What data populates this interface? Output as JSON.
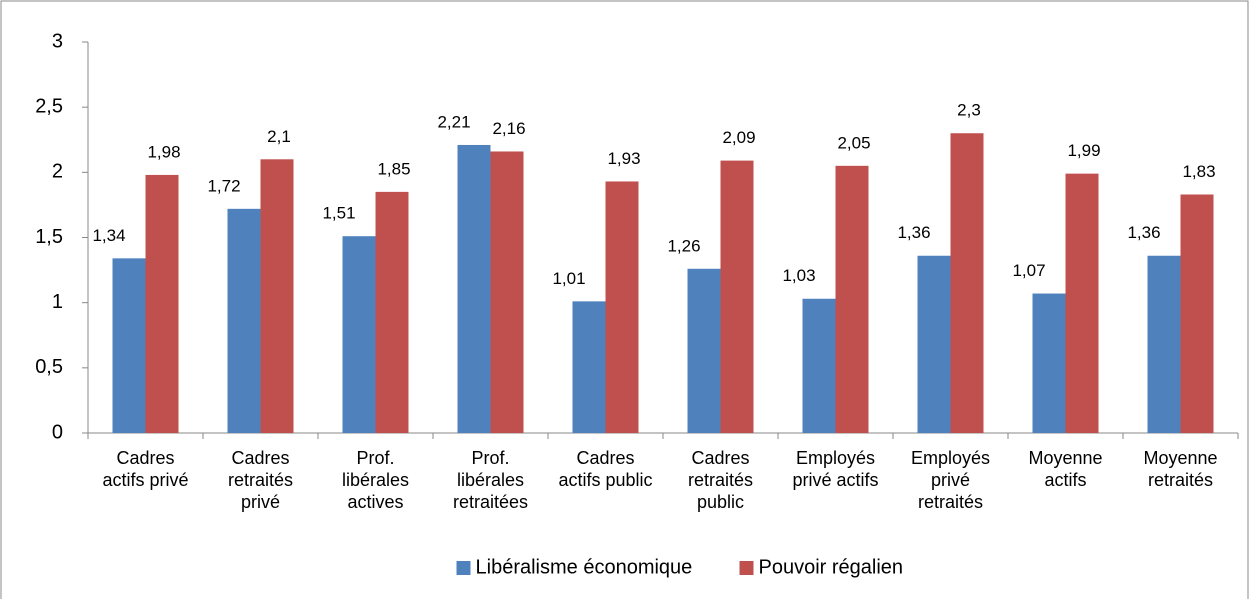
{
  "chart_data": {
    "type": "bar",
    "categories": [
      "Cadres actifs privé",
      "Cadres retraités privé",
      "Prof. libérales actives",
      "Prof. libérales retraitées",
      "Cadres actifs public",
      "Cadres retraités public",
      "Employés privé actifs",
      "Employés privé retraités",
      "Moyenne actifs",
      "Moyenne retraités"
    ],
    "series": [
      {
        "name": "Libéralisme économique",
        "color": "#4f81bd",
        "values": [
          1.34,
          1.72,
          1.51,
          2.21,
          1.01,
          1.26,
          1.03,
          1.36,
          1.07,
          1.36
        ],
        "value_labels": [
          "1,34",
          "1,72",
          "1,51",
          "2,21",
          "1,01",
          "1,26",
          "1,03",
          "1,36",
          "1,07",
          "1,36"
        ]
      },
      {
        "name": "Pouvoir régalien",
        "color": "#c0504d",
        "values": [
          1.98,
          2.1,
          1.85,
          2.16,
          1.93,
          2.09,
          2.05,
          2.3,
          1.99,
          1.83
        ],
        "value_labels": [
          "1,98",
          "2,1",
          "1,85",
          "2,16",
          "1,93",
          "2,09",
          "2,05",
          "2,3",
          "1,99",
          "1,83"
        ]
      }
    ],
    "ylim": [
      0,
      3
    ],
    "yticks": [
      0,
      {
        "value": 0.5,
        "label": "0,5"
      },
      1,
      {
        "value": 1.5,
        "label": "1,5"
      },
      2,
      {
        "value": 2.5,
        "label": "2,5"
      },
      3
    ],
    "grid": false,
    "legend": "bottom"
  }
}
